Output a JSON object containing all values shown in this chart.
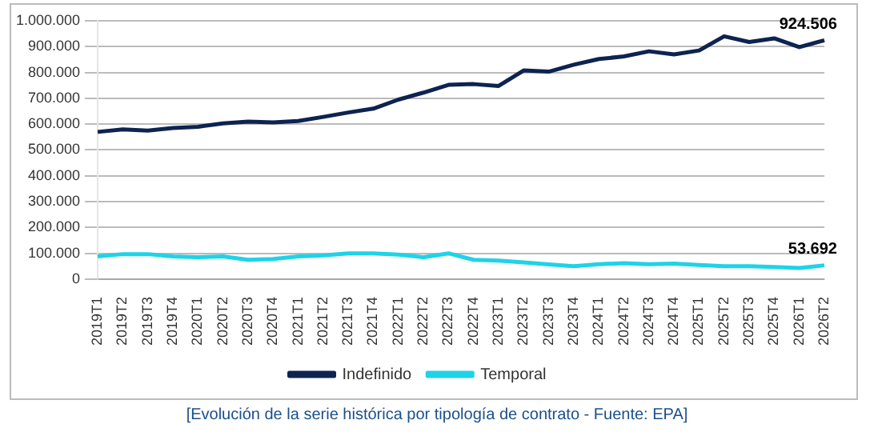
{
  "chart_data": {
    "type": "line",
    "categories": [
      "2019T1",
      "2019T2",
      "2019T3",
      "2019T4",
      "2020T1",
      "2020T2",
      "2020T3",
      "2020T4",
      "2021T1",
      "2021T2",
      "2021T3",
      "2021T4",
      "2022T1",
      "2022T2",
      "2022T3",
      "2022T4",
      "2023T1",
      "2023T2",
      "2023T3",
      "2023T4",
      "2024T1",
      "2024T2",
      "2024T3",
      "2024T4",
      "2025T1",
      "2025T2",
      "2025T3",
      "2025T4",
      "2026T1",
      "2026T2"
    ],
    "series": [
      {
        "name": "Indefinido",
        "color": "#0d2350",
        "values": [
          570000,
          580000,
          575000,
          585000,
          590000,
          603000,
          610000,
          607000,
          612000,
          628000,
          645000,
          660000,
          695000,
          722000,
          752000,
          755000,
          748000,
          808000,
          803000,
          830000,
          852000,
          862000,
          882000,
          870000,
          885000,
          940000,
          918000,
          932000,
          898000,
          924506
        ],
        "value_labels": [
          null,
          null,
          null,
          null,
          null,
          null,
          null,
          null,
          null,
          null,
          null,
          null,
          null,
          null,
          null,
          null,
          null,
          null,
          null,
          null,
          null,
          null,
          null,
          null,
          null,
          null,
          null,
          null,
          null,
          "924.506"
        ]
      },
      {
        "name": "Temporal",
        "color": "#1ed3e8",
        "values": [
          88000,
          97000,
          97000,
          88000,
          85000,
          88000,
          75000,
          78000,
          88000,
          92000,
          100000,
          100000,
          95000,
          85000,
          100000,
          75000,
          72000,
          65000,
          57000,
          50000,
          58000,
          62000,
          58000,
          60000,
          55000,
          50000,
          50000,
          47000,
          43000,
          53692
        ],
        "value_labels": [
          null,
          null,
          null,
          null,
          null,
          null,
          null,
          null,
          null,
          null,
          null,
          null,
          null,
          null,
          null,
          null,
          null,
          null,
          null,
          null,
          null,
          null,
          null,
          null,
          null,
          null,
          null,
          null,
          null,
          "53.692"
        ]
      }
    ],
    "ylim": [
      0,
      1000000
    ],
    "yticks": [
      0,
      {
        "value": 100000,
        "label": "100.000"
      },
      {
        "value": 200000,
        "label": "200.000"
      },
      {
        "value": 300000,
        "label": "300.000"
      },
      {
        "value": 400000,
        "label": "400.000"
      },
      {
        "value": 500000,
        "label": "500.000"
      },
      {
        "value": 600000,
        "label": "600.000"
      },
      {
        "value": 700000,
        "label": "700.000"
      },
      {
        "value": 800000,
        "label": "800.000"
      },
      {
        "value": 900000,
        "label": "900.000"
      },
      {
        "value": 1000000,
        "label": "1.000.000"
      }
    ],
    "grid": "y",
    "legend": "bottom",
    "marker": "none",
    "line_style": "solid",
    "annotations": [
      "[Evolución de la serie histórica por tipología de contrato - Fuente: EPA]"
    ]
  }
}
